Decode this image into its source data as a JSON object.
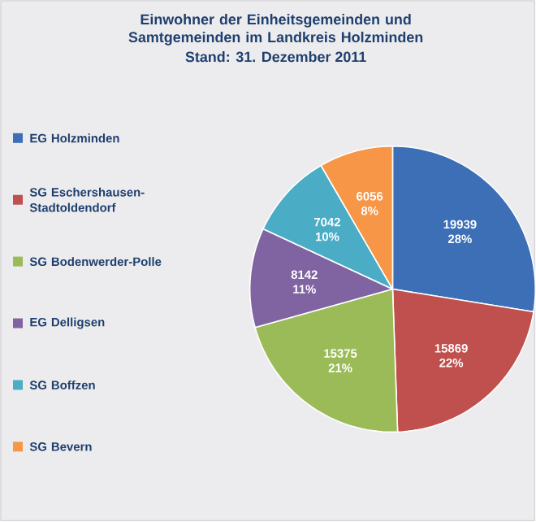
{
  "chart_data": {
    "type": "pie",
    "title": "Einwohner der Einheitsgemeinden und Samtgemeinden im Landkreis Holzminden",
    "subtitle": "Stand: 31. Dezember 2011",
    "categories": [
      "EG Holzminden",
      "SG Eschershausen-Stadtoldendorf",
      "SG Bodenwerder-Polle",
      "EG Delligsen",
      "SG Boffzen",
      "SG Bevern"
    ],
    "values": [
      19939,
      15869,
      15375,
      8142,
      7042,
      6056
    ],
    "value_labels": [
      "19939 28%",
      "15869 22%",
      "15375 21%",
      "8142 11%",
      "7042 10%",
      "6056 8%"
    ],
    "colors": [
      "#3d6fb6",
      "#c0504d",
      "#9bbb59",
      "#8064a2",
      "#4bacc6",
      "#f79646"
    ],
    "legend": "left"
  }
}
